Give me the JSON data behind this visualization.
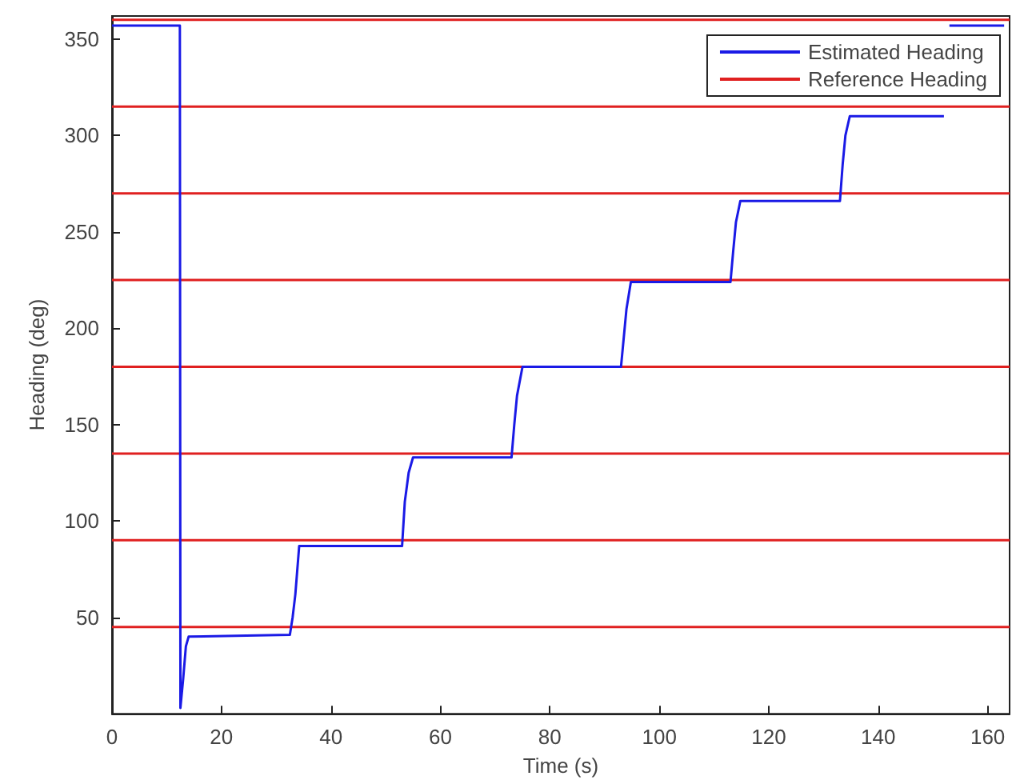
{
  "chart_data": {
    "type": "line",
    "xlabel": "Time (s)",
    "ylabel": "Heading (deg)",
    "xlim": [
      0,
      164
    ],
    "xticks": [
      0,
      20,
      40,
      60,
      80,
      100,
      120,
      140,
      160
    ],
    "ylim": [
      0,
      362
    ],
    "yticks": [
      50,
      100,
      150,
      200,
      250,
      300,
      350
    ],
    "grid": false,
    "legend": "top right",
    "marker": "none",
    "line_style": "solid",
    "series": [
      {
        "name": "Estimated Heading",
        "color": "#1a1ae6",
        "x": [
          0,
          12.4,
          12.5,
          13,
          13.5,
          14,
          32.5,
          33,
          33.5,
          34.2,
          53,
          53.5,
          54.2,
          55,
          73,
          73.5,
          74,
          75,
          93,
          93.5,
          94,
          94.8,
          113,
          113.5,
          114,
          114.8,
          133,
          133.5,
          134,
          134.8,
          152,
          152.5,
          153,
          163
        ],
        "values": [
          357,
          357,
          3,
          18,
          35,
          40,
          41,
          50,
          62,
          87,
          87,
          110,
          125,
          133,
          133,
          150,
          165,
          180,
          180,
          195,
          210,
          224,
          224,
          240,
          255,
          266,
          266,
          285,
          300,
          310,
          310,
          null,
          357,
          357
        ]
      },
      {
        "name": "Reference Heading",
        "color": "#e02020",
        "x": [
          0,
          164
        ],
        "values": [
          45,
          45
        ]
      },
      {
        "color": "#e02020",
        "x": [
          0,
          164
        ],
        "values": [
          90,
          90
        ]
      },
      {
        "color": "#e02020",
        "x": [
          0,
          164
        ],
        "values": [
          135,
          135
        ]
      },
      {
        "color": "#e02020",
        "x": [
          0,
          164
        ],
        "values": [
          180,
          180
        ]
      },
      {
        "color": "#e02020",
        "x": [
          0,
          164
        ],
        "values": [
          225,
          225
        ]
      },
      {
        "color": "#e02020",
        "x": [
          0,
          164
        ],
        "values": [
          270,
          270
        ]
      },
      {
        "color": "#e02020",
        "x": [
          0,
          164
        ],
        "values": [
          315,
          315
        ]
      },
      {
        "color": "#e02020",
        "x": [
          0,
          164
        ],
        "values": [
          360,
          360
        ]
      }
    ]
  }
}
